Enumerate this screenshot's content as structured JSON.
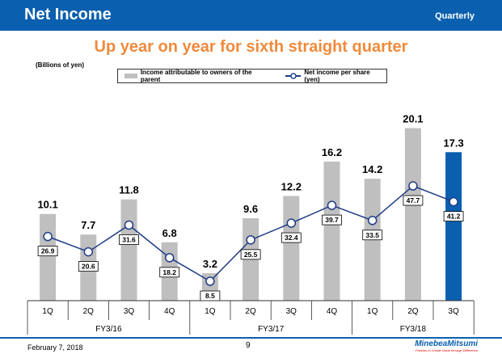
{
  "header": {
    "title": "Net Income",
    "period": "Quarterly"
  },
  "headline": "Up year on year for sixth straight quarter",
  "footer": {
    "date": "February 7, 2018",
    "page": "9",
    "logo": "MinebeaMitsumi",
    "tagline": "Passion to Create Value through Difference"
  },
  "chart_data": {
    "type": "bar+line",
    "unit_label": "(Billions of yen)",
    "categories": [
      "1Q",
      "2Q",
      "3Q",
      "4Q",
      "1Q",
      "2Q",
      "3Q",
      "4Q",
      "1Q",
      "2Q",
      "3Q"
    ],
    "groups": [
      {
        "label": "FY3/16",
        "span": 4
      },
      {
        "label": "FY3/17",
        "span": 4
      },
      {
        "label": "FY3/18",
        "span": 3
      }
    ],
    "series": [
      {
        "name": "Income attributable to owners of the parent",
        "type": "bar",
        "values": [
          10.1,
          7.7,
          11.8,
          6.8,
          3.2,
          9.6,
          12.2,
          16.2,
          14.2,
          20.1,
          17.3
        ],
        "color": "#bfbfbf",
        "highlight_color": "#0a5fae",
        "highlight_index": 10
      },
      {
        "name": "Net income per share (yen)",
        "type": "line",
        "values": [
          26.9,
          20.6,
          31.6,
          18.2,
          8.5,
          25.5,
          32.4,
          39.7,
          33.5,
          47.7,
          41.2
        ],
        "color": "#1f3c88"
      }
    ]
  }
}
